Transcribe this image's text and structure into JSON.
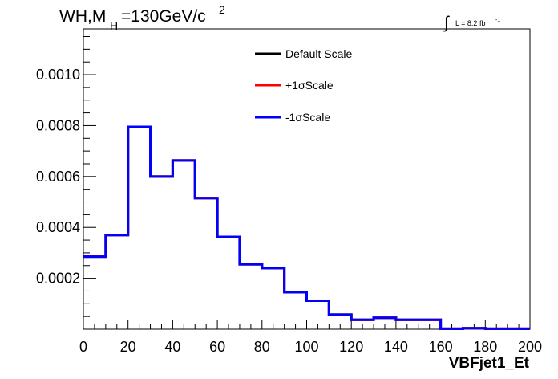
{
  "header": {
    "title_main": "WH,M",
    "title_sub": "H",
    "title_rest": "=130GeV/c",
    "title_sup": "2",
    "lumi_integral": "∫",
    "lumi_text": "L = 8.2 fb",
    "lumi_sup": "-1"
  },
  "legend": {
    "items": [
      {
        "label": "Default Scale",
        "color": "#000000"
      },
      {
        "label": "+1σScale",
        "color": "#ff0000"
      },
      {
        "label": "-1σScale",
        "color": "#0000ff"
      }
    ]
  },
  "chart_data": {
    "type": "histogram",
    "xlabel": "VBFjet1_Et",
    "xlim": [
      0,
      200
    ],
    "ylim": [
      0,
      0.00118
    ],
    "bin_edges": [
      0,
      10,
      20,
      30,
      40,
      50,
      60,
      70,
      80,
      90,
      100,
      110,
      120,
      130,
      140,
      150,
      160,
      170,
      180,
      190,
      200
    ],
    "x_ticks": [
      0,
      20,
      40,
      60,
      80,
      100,
      120,
      140,
      160,
      180,
      200
    ],
    "x_tick_labels": [
      "0",
      "20",
      "40",
      "60",
      "80",
      "100",
      "120",
      "140",
      "160",
      "180",
      "200"
    ],
    "y_ticks": [
      0.0002,
      0.0004,
      0.0006,
      0.0008,
      0.001
    ],
    "y_tick_labels": [
      "0.0002",
      "0.0004",
      "0.0006",
      "0.0008",
      "0.0010"
    ],
    "series": [
      {
        "name": "Default Scale",
        "color": "#000000",
        "values": [
          0.000285,
          0.00037,
          0.000795,
          0.0006,
          0.000663,
          0.000515,
          0.000363,
          0.000255,
          0.00024,
          0.000145,
          0.000112,
          5.7e-05,
          3.7e-05,
          4.5e-05,
          3.7e-05,
          3.7e-05,
          2e-06,
          4e-06,
          2e-06,
          2e-06
        ]
      },
      {
        "name": "+1σScale",
        "color": "#ff0000",
        "values": [
          0.000285,
          0.00037,
          0.000795,
          0.0006,
          0.000663,
          0.000515,
          0.000363,
          0.000255,
          0.00024,
          0.000145,
          0.000112,
          5.7e-05,
          3.7e-05,
          4.5e-05,
          3.7e-05,
          3.7e-05,
          2e-06,
          4e-06,
          2e-06,
          2e-06
        ]
      },
      {
        "name": "-1σScale",
        "color": "#0000ff",
        "values": [
          0.000285,
          0.00037,
          0.000795,
          0.0006,
          0.000663,
          0.000515,
          0.000363,
          0.000255,
          0.00024,
          0.000145,
          0.000112,
          5.7e-05,
          3.7e-05,
          4.5e-05,
          3.7e-05,
          3.7e-05,
          2e-06,
          4e-06,
          2e-06,
          2e-06
        ]
      }
    ]
  }
}
